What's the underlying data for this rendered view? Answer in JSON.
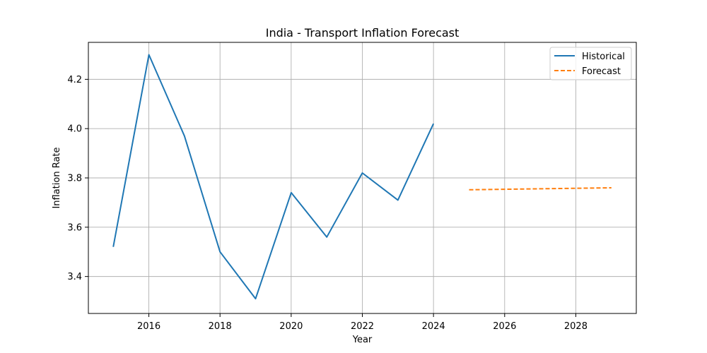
{
  "chart_data": {
    "type": "line",
    "title": "India - Transport Inflation Forecast",
    "xlabel": "Year",
    "ylabel": "Inflation Rate",
    "xlim": [
      2014.3,
      2029.7
    ],
    "ylim": [
      3.25,
      4.35
    ],
    "xticks": [
      2016,
      2018,
      2020,
      2022,
      2024,
      2026,
      2028
    ],
    "yticks": [
      3.4,
      3.6,
      3.8,
      4.0,
      4.2
    ],
    "grid": true,
    "legend_position": "top-right",
    "series": [
      {
        "name": "Historical",
        "color": "#1f77b4",
        "style": "solid",
        "x": [
          2015,
          2016,
          2017,
          2018,
          2019,
          2020,
          2021,
          2022,
          2023,
          2024
        ],
        "y": [
          3.52,
          4.3,
          3.97,
          3.5,
          3.31,
          3.74,
          3.56,
          3.82,
          3.71,
          4.02
        ]
      },
      {
        "name": "Forecast",
        "color": "#ff7f0e",
        "style": "dashed",
        "x": [
          2025,
          2026,
          2027,
          2028,
          2029
        ],
        "y": [
          3.752,
          3.754,
          3.756,
          3.758,
          3.76
        ]
      }
    ]
  }
}
